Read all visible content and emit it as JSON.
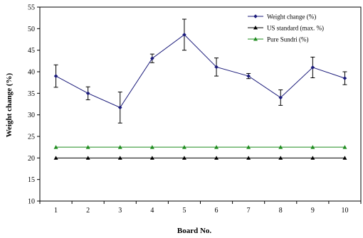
{
  "chart_data": {
    "type": "line",
    "xlabel": "Board No.",
    "ylabel": "Weight change (%)",
    "ylim": [
      10,
      55
    ],
    "xlim": [
      0.5,
      10.5
    ],
    "y_ticks": [
      10,
      15,
      20,
      25,
      30,
      35,
      40,
      45,
      50,
      55
    ],
    "x": [
      1,
      2,
      3,
      4,
      5,
      6,
      7,
      8,
      9,
      10
    ],
    "x_tick_labels": [
      "1",
      "2",
      "3",
      "4",
      "5",
      "6",
      "7",
      "8",
      "9",
      "10"
    ],
    "grid": false,
    "legend_position": "top-right",
    "series": [
      {
        "name": "Weight change (%)",
        "color": "#1a1a7a",
        "marker": "diamond",
        "values": [
          39.0,
          35.0,
          31.7,
          43.1,
          48.6,
          41.1,
          39.0,
          34.0,
          41.0,
          38.5
        ],
        "error": [
          2.6,
          1.5,
          3.6,
          1.0,
          3.6,
          2.1,
          0.6,
          1.8,
          2.4,
          1.5
        ]
      },
      {
        "name": "US standard (max. %)",
        "color": "#000000",
        "marker": "triangle",
        "values": [
          20,
          20,
          20,
          20,
          20,
          20,
          20,
          20,
          20,
          20
        ]
      },
      {
        "name": "Pure Sundri (%)",
        "color": "#1f8c1f",
        "marker": "triangle",
        "values": [
          22.5,
          22.5,
          22.5,
          22.5,
          22.5,
          22.5,
          22.5,
          22.5,
          22.5,
          22.5
        ]
      }
    ]
  }
}
